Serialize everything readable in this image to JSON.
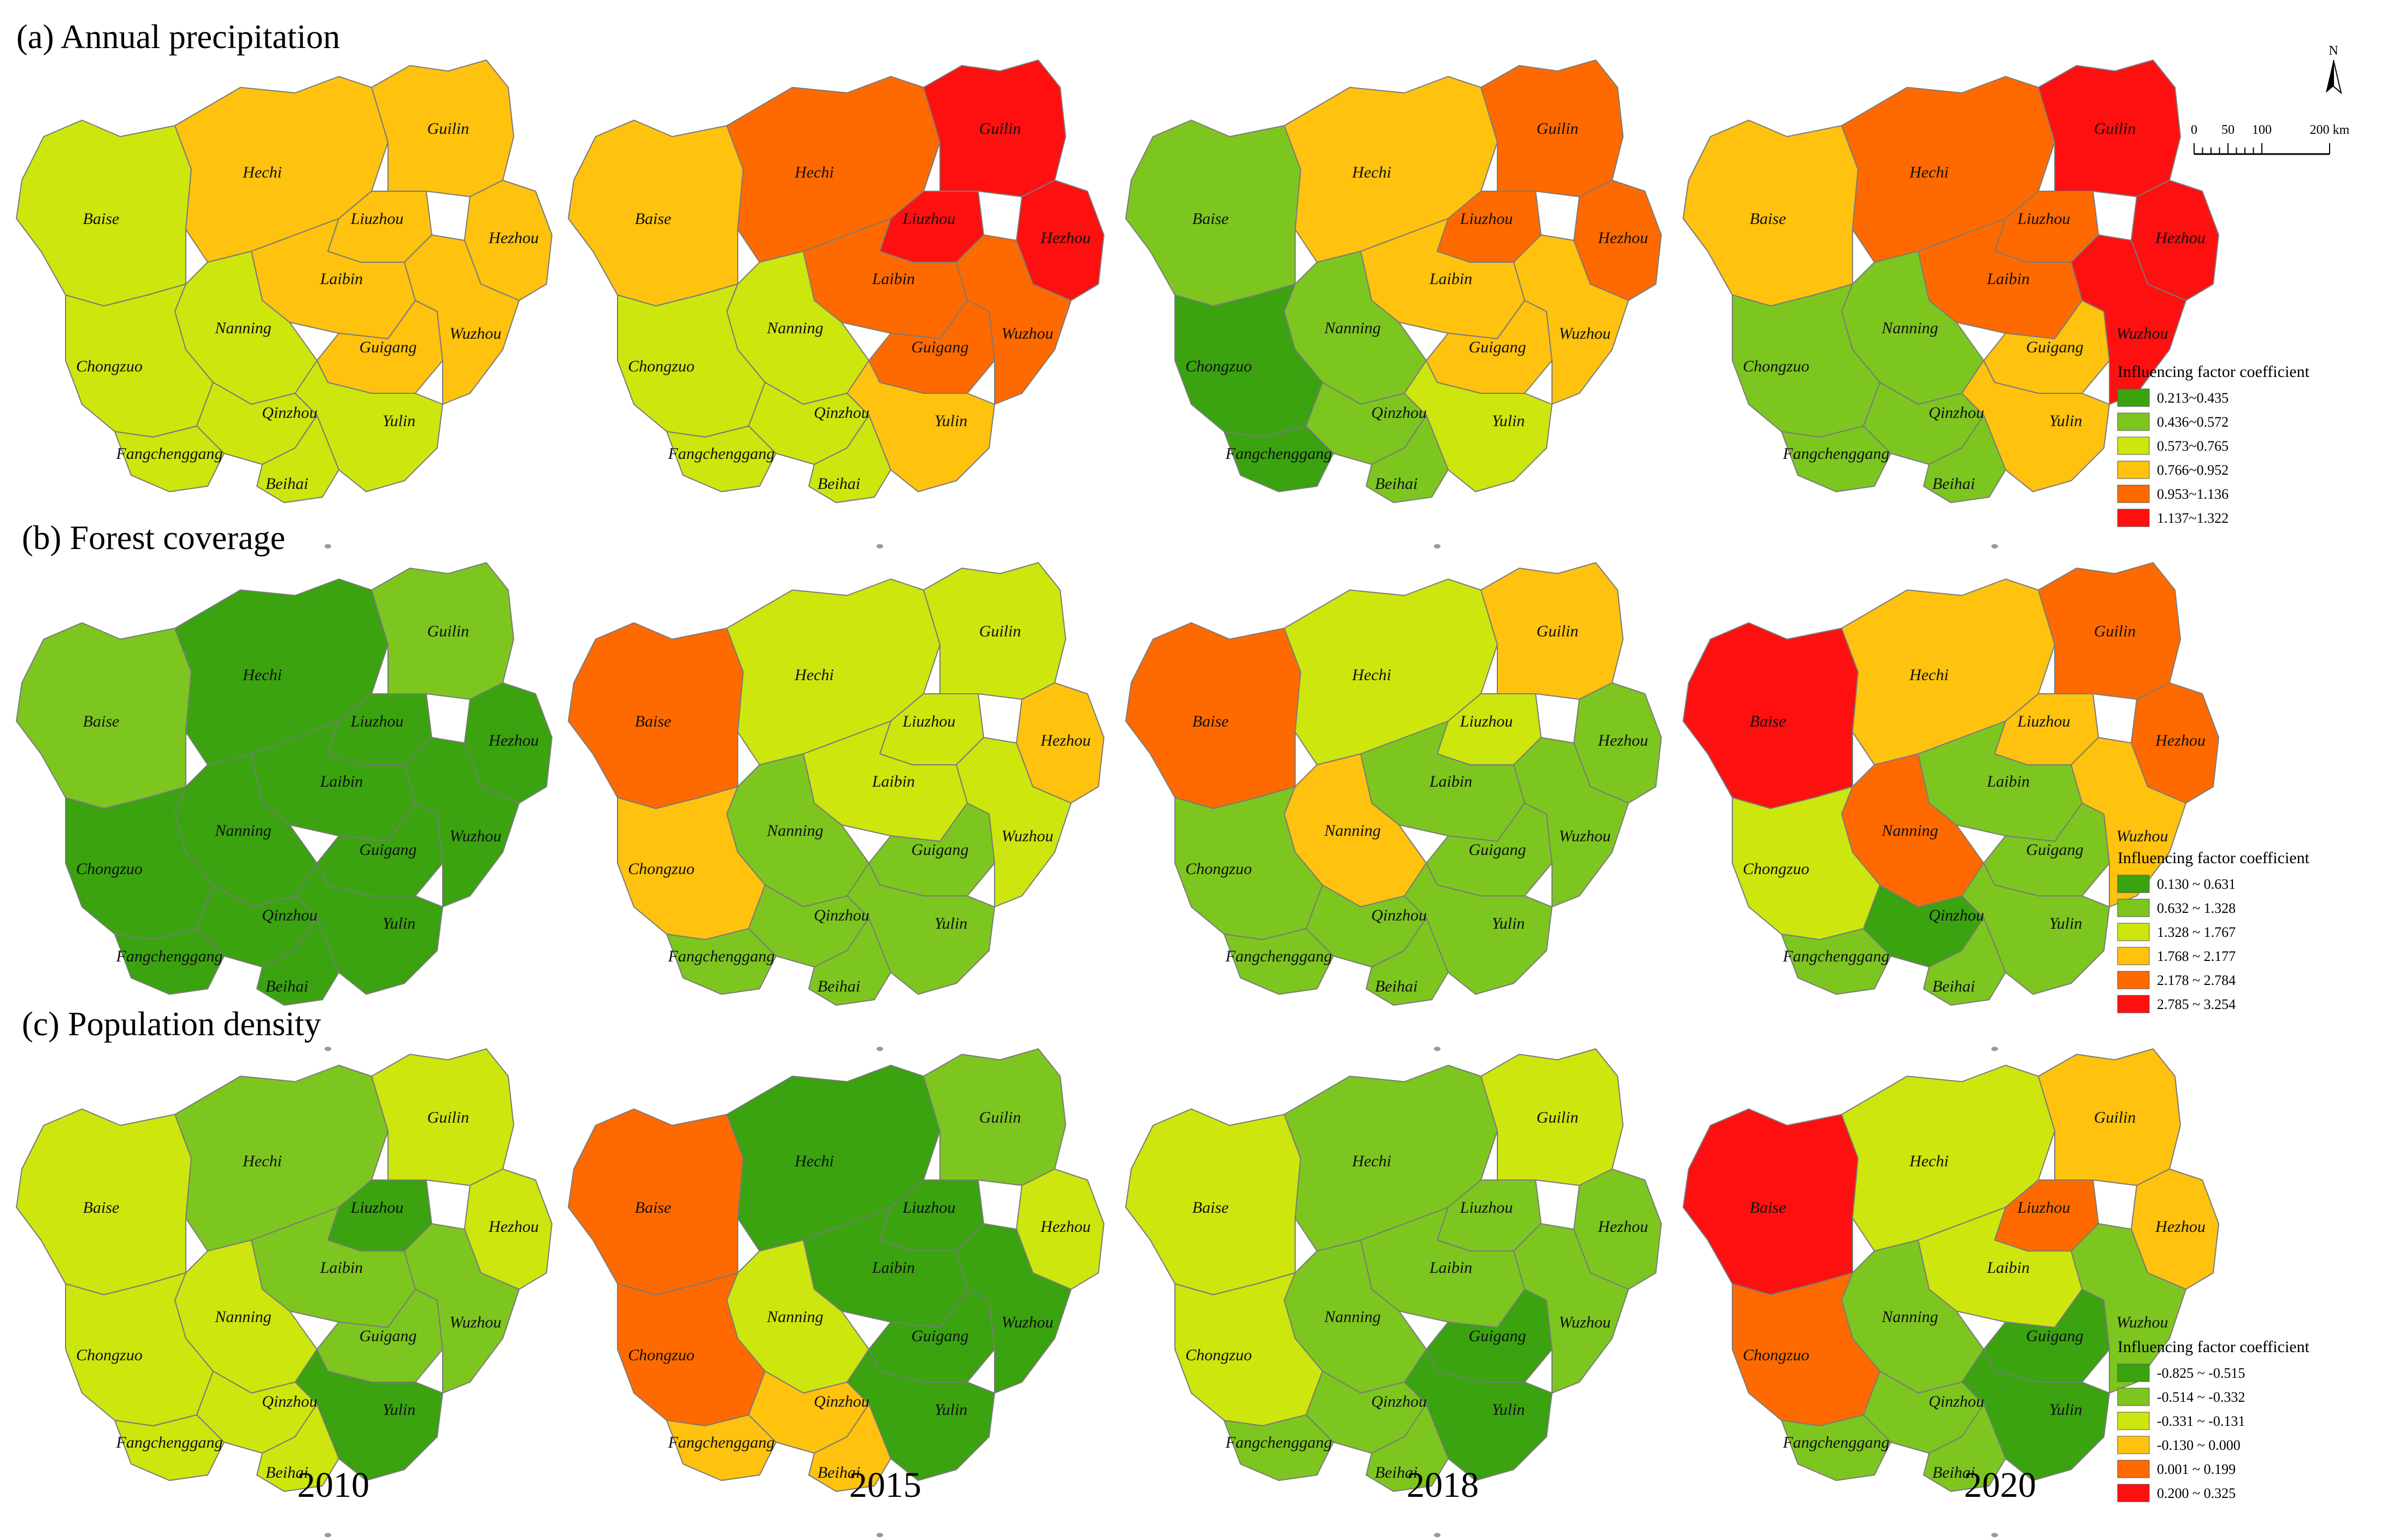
{
  "colors": [
    "#3aa30f",
    "#7dc61f",
    "#cde60e",
    "#ffc20e",
    "#ff6a00",
    "#ff1010"
  ],
  "border_color": "#7a7a7a",
  "cities": [
    "Baise",
    "Hechi",
    "Guilin",
    "Liuzhou",
    "Hezhou",
    "Laibin",
    "Nanning",
    "Guigang",
    "Wuzhou",
    "Chongzuo",
    "Qinzhou",
    "Yulin",
    "Fangchenggang",
    "Beihai"
  ],
  "years": [
    "2010",
    "2015",
    "2018",
    "2020"
  ],
  "north_label": "N",
  "scale_bar": {
    "labels": [
      "0",
      "50",
      "100",
      "200 km"
    ]
  },
  "panels": [
    {
      "title": "(a)   Annual precipitation",
      "legend": {
        "title": "Influencing factor coefficient",
        "classes": [
          "0.213~0.435",
          "0.436~0.572",
          "0.573~0.765",
          "0.766~0.952",
          "0.953~1.136",
          "1.137~1.322"
        ]
      },
      "class_index": [
        {
          "Baise": 2,
          "Hechi": 3,
          "Guilin": 3,
          "Liuzhou": 3,
          "Hezhou": 3,
          "Laibin": 3,
          "Nanning": 2,
          "Guigang": 3,
          "Wuzhou": 3,
          "Chongzuo": 2,
          "Qinzhou": 2,
          "Yulin": 2,
          "Fangchenggang": 2,
          "Beihai": 2
        },
        {
          "Baise": 3,
          "Hechi": 4,
          "Guilin": 5,
          "Liuzhou": 5,
          "Hezhou": 5,
          "Laibin": 4,
          "Nanning": 2,
          "Guigang": 4,
          "Wuzhou": 4,
          "Chongzuo": 2,
          "Qinzhou": 2,
          "Yulin": 3,
          "Fangchenggang": 2,
          "Beihai": 2
        },
        {
          "Baise": 1,
          "Hechi": 3,
          "Guilin": 4,
          "Liuzhou": 4,
          "Hezhou": 4,
          "Laibin": 3,
          "Nanning": 1,
          "Guigang": 3,
          "Wuzhou": 3,
          "Chongzuo": 0,
          "Qinzhou": 1,
          "Yulin": 2,
          "Fangchenggang": 0,
          "Beihai": 1
        },
        {
          "Baise": 3,
          "Hechi": 4,
          "Guilin": 5,
          "Liuzhou": 4,
          "Hezhou": 5,
          "Laibin": 4,
          "Nanning": 1,
          "Guigang": 3,
          "Wuzhou": 5,
          "Chongzuo": 1,
          "Qinzhou": 1,
          "Yulin": 3,
          "Fangchenggang": 1,
          "Beihai": 1
        }
      ]
    },
    {
      "title": "(b)   Forest coverage",
      "legend": {
        "title": "Influencing factor coefficient",
        "classes": [
          "0.130 ~ 0.631",
          "0.632 ~ 1.328",
          "1.328 ~ 1.767",
          "1.768 ~ 2.177",
          "2.178 ~ 2.784",
          "2.785 ~ 3.254"
        ]
      },
      "class_index": [
        {
          "Baise": 1,
          "Hechi": 0,
          "Guilin": 1,
          "Liuzhou": 0,
          "Hezhou": 0,
          "Laibin": 0,
          "Nanning": 0,
          "Guigang": 0,
          "Wuzhou": 0,
          "Chongzuo": 0,
          "Qinzhou": 0,
          "Yulin": 0,
          "Fangchenggang": 0,
          "Beihai": 0
        },
        {
          "Baise": 4,
          "Hechi": 2,
          "Guilin": 2,
          "Liuzhou": 2,
          "Hezhou": 3,
          "Laibin": 2,
          "Nanning": 1,
          "Guigang": 1,
          "Wuzhou": 2,
          "Chongzuo": 3,
          "Qinzhou": 1,
          "Yulin": 1,
          "Fangchenggang": 1,
          "Beihai": 1
        },
        {
          "Baise": 4,
          "Hechi": 2,
          "Guilin": 3,
          "Liuzhou": 2,
          "Hezhou": 1,
          "Laibin": 1,
          "Nanning": 3,
          "Guigang": 1,
          "Wuzhou": 1,
          "Chongzuo": 1,
          "Qinzhou": 1,
          "Yulin": 1,
          "Fangchenggang": 1,
          "Beihai": 1
        },
        {
          "Baise": 5,
          "Hechi": 3,
          "Guilin": 4,
          "Liuzhou": 3,
          "Hezhou": 4,
          "Laibin": 1,
          "Nanning": 4,
          "Guigang": 1,
          "Wuzhou": 3,
          "Chongzuo": 2,
          "Qinzhou": 0,
          "Yulin": 1,
          "Fangchenggang": 1,
          "Beihai": 1
        }
      ]
    },
    {
      "title": "(c)   Population density",
      "legend": {
        "title": "Influencing factor coefficient",
        "classes": [
          "-0.825 ~ -0.515",
          "-0.514 ~ -0.332",
          "-0.331 ~ -0.131",
          "-0.130 ~ 0.000",
          "0.001 ~ 0.199",
          "0.200 ~ 0.325"
        ]
      },
      "class_index": [
        {
          "Baise": 2,
          "Hechi": 1,
          "Guilin": 2,
          "Liuzhou": 0,
          "Hezhou": 2,
          "Laibin": 1,
          "Nanning": 2,
          "Guigang": 1,
          "Wuzhou": 1,
          "Chongzuo": 2,
          "Qinzhou": 2,
          "Yulin": 0,
          "Fangchenggang": 2,
          "Beihai": 2
        },
        {
          "Baise": 4,
          "Hechi": 0,
          "Guilin": 1,
          "Liuzhou": 0,
          "Hezhou": 2,
          "Laibin": 0,
          "Nanning": 2,
          "Guigang": 0,
          "Wuzhou": 0,
          "Chongzuo": 4,
          "Qinzhou": 3,
          "Yulin": 0,
          "Fangchenggang": 3,
          "Beihai": 3
        },
        {
          "Baise": 2,
          "Hechi": 1,
          "Guilin": 2,
          "Liuzhou": 1,
          "Hezhou": 1,
          "Laibin": 1,
          "Nanning": 1,
          "Guigang": 0,
          "Wuzhou": 1,
          "Chongzuo": 2,
          "Qinzhou": 1,
          "Yulin": 0,
          "Fangchenggang": 1,
          "Beihai": 1
        },
        {
          "Baise": 5,
          "Hechi": 2,
          "Guilin": 3,
          "Liuzhou": 4,
          "Hezhou": 3,
          "Laibin": 2,
          "Nanning": 1,
          "Guigang": 0,
          "Wuzhou": 1,
          "Chongzuo": 4,
          "Qinzhou": 1,
          "Yulin": 0,
          "Fangchenggang": 1,
          "Beihai": 1
        }
      ]
    }
  ]
}
